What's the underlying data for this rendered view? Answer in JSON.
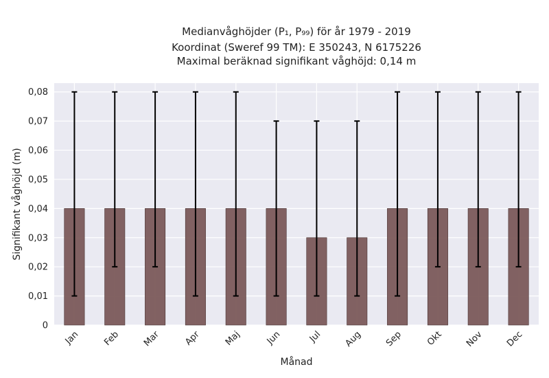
{
  "chart_data": {
    "type": "bar",
    "title_lines": [
      "Medianvåghöjder (P₁, P₉₉) för år 1979 - 2019",
      "Koordinat (Sweref 99 TM): E 350243, N 6175226",
      "Maximal beräknad signifikant våghöjd: 0,14 m"
    ],
    "xlabel": "Månad",
    "ylabel": "Signifikant våghöjd (m)",
    "categories": [
      "Jan",
      "Feb",
      "Mar",
      "Apr",
      "Maj",
      "Jun",
      "Jul",
      "Aug",
      "Sep",
      "Okt",
      "Nov",
      "Dec"
    ],
    "values": [
      0.04,
      0.04,
      0.04,
      0.04,
      0.04,
      0.04,
      0.03,
      0.03,
      0.04,
      0.04,
      0.04,
      0.04
    ],
    "error_low": [
      0.01,
      0.02,
      0.02,
      0.01,
      0.01,
      0.01,
      0.01,
      0.01,
      0.01,
      0.02,
      0.02,
      0.02
    ],
    "error_high": [
      0.08,
      0.08,
      0.08,
      0.08,
      0.08,
      0.07,
      0.07,
      0.07,
      0.08,
      0.08,
      0.08,
      0.08
    ],
    "ylim": [
      0,
      0.083
    ],
    "yticks": [
      0,
      0.01,
      0.02,
      0.03,
      0.04,
      0.05,
      0.06,
      0.07,
      0.08
    ],
    "ytick_labels": [
      "0",
      "0,01",
      "0,02",
      "0,03",
      "0,04",
      "0,05",
      "0,06",
      "0,07",
      "0,08"
    ],
    "grid": true,
    "bar_color": "#7b5a5a",
    "plot_background": "#eaeaf2",
    "grid_color": "#ffffff",
    "errorbar_color": "#000000"
  }
}
